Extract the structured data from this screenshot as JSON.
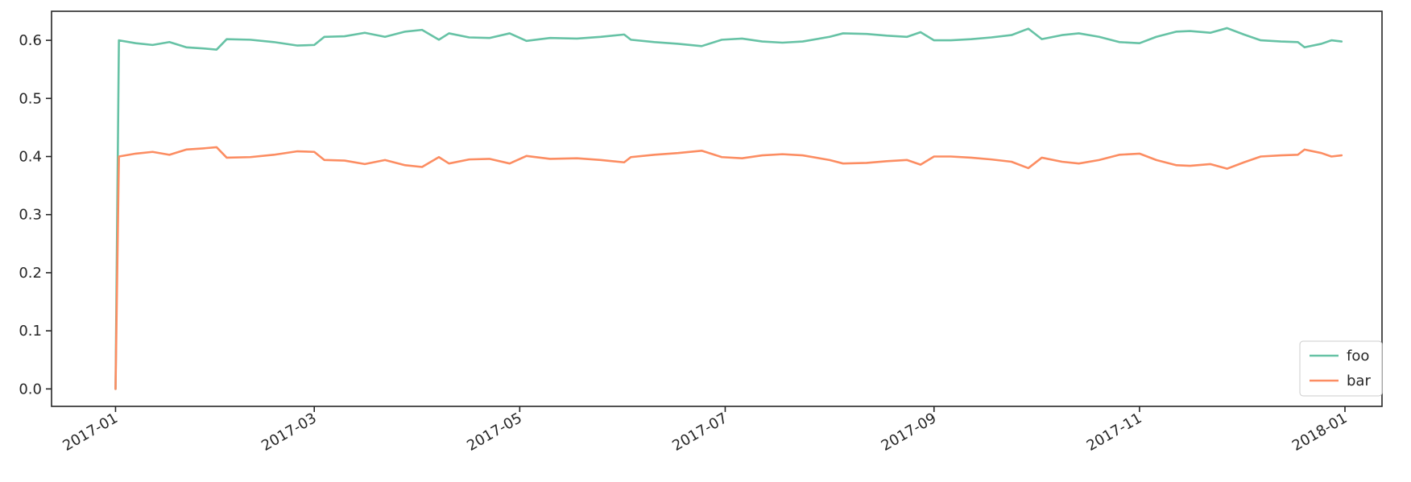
{
  "chart_data": {
    "type": "line",
    "title": "",
    "xlabel": "",
    "ylabel": "",
    "x_start": "2017-01-01",
    "x_end": "2017-12-31",
    "xlim": [
      "2016-12-13",
      "2018-01-12"
    ],
    "ylim": [
      -0.03,
      0.65
    ],
    "grid": false,
    "legend_position": "lower-right",
    "x_ticks": [
      {
        "label": "2017-01",
        "date": "2017-01-01"
      },
      {
        "label": "2017-03",
        "date": "2017-03-01"
      },
      {
        "label": "2017-05",
        "date": "2017-05-01"
      },
      {
        "label": "2017-07",
        "date": "2017-07-01"
      },
      {
        "label": "2017-09",
        "date": "2017-09-01"
      },
      {
        "label": "2017-11",
        "date": "2017-11-01"
      },
      {
        "label": "2018-01",
        "date": "2018-01-01"
      }
    ],
    "y_ticks": [
      {
        "label": "0.0",
        "value": 0.0
      },
      {
        "label": "0.1",
        "value": 0.1
      },
      {
        "label": "0.2",
        "value": 0.2
      },
      {
        "label": "0.3",
        "value": 0.3
      },
      {
        "label": "0.4",
        "value": 0.4
      },
      {
        "label": "0.5",
        "value": 0.5
      },
      {
        "label": "0.6",
        "value": 0.6
      }
    ],
    "series": [
      {
        "name": "foo",
        "color": "#66c2a5",
        "points": [
          [
            "2017-01-01",
            0.0
          ],
          [
            "2017-01-02",
            0.6
          ],
          [
            "2017-01-07",
            0.595
          ],
          [
            "2017-01-12",
            0.592
          ],
          [
            "2017-01-17",
            0.597
          ],
          [
            "2017-01-22",
            0.588
          ],
          [
            "2017-01-27",
            0.586
          ],
          [
            "2017-01-31",
            0.584
          ],
          [
            "2017-02-03",
            0.602
          ],
          [
            "2017-02-10",
            0.601
          ],
          [
            "2017-02-17",
            0.597
          ],
          [
            "2017-02-24",
            0.591
          ],
          [
            "2017-03-01",
            0.592
          ],
          [
            "2017-03-04",
            0.606
          ],
          [
            "2017-03-10",
            0.607
          ],
          [
            "2017-03-16",
            0.613
          ],
          [
            "2017-03-22",
            0.606
          ],
          [
            "2017-03-28",
            0.615
          ],
          [
            "2017-04-02",
            0.618
          ],
          [
            "2017-04-07",
            0.601
          ],
          [
            "2017-04-10",
            0.612
          ],
          [
            "2017-04-16",
            0.605
          ],
          [
            "2017-04-22",
            0.604
          ],
          [
            "2017-04-28",
            0.612
          ],
          [
            "2017-05-03",
            0.599
          ],
          [
            "2017-05-10",
            0.604
          ],
          [
            "2017-05-18",
            0.603
          ],
          [
            "2017-05-25",
            0.606
          ],
          [
            "2017-06-01",
            0.61
          ],
          [
            "2017-06-03",
            0.601
          ],
          [
            "2017-06-10",
            0.597
          ],
          [
            "2017-06-17",
            0.594
          ],
          [
            "2017-06-24",
            0.59
          ],
          [
            "2017-06-30",
            0.601
          ],
          [
            "2017-07-06",
            0.603
          ],
          [
            "2017-07-12",
            0.598
          ],
          [
            "2017-07-18",
            0.596
          ],
          [
            "2017-07-24",
            0.598
          ],
          [
            "2017-08-01",
            0.606
          ],
          [
            "2017-08-05",
            0.612
          ],
          [
            "2017-08-12",
            0.611
          ],
          [
            "2017-08-18",
            0.608
          ],
          [
            "2017-08-24",
            0.606
          ],
          [
            "2017-08-28",
            0.614
          ],
          [
            "2017-09-01",
            0.6
          ],
          [
            "2017-09-06",
            0.6
          ],
          [
            "2017-09-12",
            0.602
          ],
          [
            "2017-09-18",
            0.605
          ],
          [
            "2017-09-24",
            0.609
          ],
          [
            "2017-09-29",
            0.62
          ],
          [
            "2017-10-03",
            0.602
          ],
          [
            "2017-10-09",
            0.609
          ],
          [
            "2017-10-14",
            0.612
          ],
          [
            "2017-10-20",
            0.606
          ],
          [
            "2017-10-26",
            0.597
          ],
          [
            "2017-11-01",
            0.595
          ],
          [
            "2017-11-06",
            0.606
          ],
          [
            "2017-11-12",
            0.615
          ],
          [
            "2017-11-16",
            0.616
          ],
          [
            "2017-11-22",
            0.613
          ],
          [
            "2017-11-27",
            0.621
          ],
          [
            "2017-12-02",
            0.61
          ],
          [
            "2017-12-07",
            0.6
          ],
          [
            "2017-12-13",
            0.598
          ],
          [
            "2017-12-18",
            0.597
          ],
          [
            "2017-12-20",
            0.588
          ],
          [
            "2017-12-25",
            0.594
          ],
          [
            "2017-12-28",
            0.6
          ],
          [
            "2017-12-31",
            0.598
          ]
        ]
      },
      {
        "name": "bar",
        "color": "#fc8d62",
        "points": [
          [
            "2017-01-01",
            0.0
          ],
          [
            "2017-01-02",
            0.4
          ],
          [
            "2017-01-07",
            0.405
          ],
          [
            "2017-01-12",
            0.408
          ],
          [
            "2017-01-17",
            0.403
          ],
          [
            "2017-01-22",
            0.412
          ],
          [
            "2017-01-27",
            0.414
          ],
          [
            "2017-01-31",
            0.416
          ],
          [
            "2017-02-03",
            0.398
          ],
          [
            "2017-02-10",
            0.399
          ],
          [
            "2017-02-17",
            0.403
          ],
          [
            "2017-02-24",
            0.409
          ],
          [
            "2017-03-01",
            0.408
          ],
          [
            "2017-03-04",
            0.394
          ],
          [
            "2017-03-10",
            0.393
          ],
          [
            "2017-03-16",
            0.387
          ],
          [
            "2017-03-22",
            0.394
          ],
          [
            "2017-03-28",
            0.385
          ],
          [
            "2017-04-02",
            0.382
          ],
          [
            "2017-04-07",
            0.399
          ],
          [
            "2017-04-10",
            0.388
          ],
          [
            "2017-04-16",
            0.395
          ],
          [
            "2017-04-22",
            0.396
          ],
          [
            "2017-04-28",
            0.388
          ],
          [
            "2017-05-03",
            0.401
          ],
          [
            "2017-05-10",
            0.396
          ],
          [
            "2017-05-18",
            0.397
          ],
          [
            "2017-05-25",
            0.394
          ],
          [
            "2017-06-01",
            0.39
          ],
          [
            "2017-06-03",
            0.399
          ],
          [
            "2017-06-10",
            0.403
          ],
          [
            "2017-06-17",
            0.406
          ],
          [
            "2017-06-24",
            0.41
          ],
          [
            "2017-06-30",
            0.399
          ],
          [
            "2017-07-06",
            0.397
          ],
          [
            "2017-07-12",
            0.402
          ],
          [
            "2017-07-18",
            0.404
          ],
          [
            "2017-07-24",
            0.402
          ],
          [
            "2017-08-01",
            0.394
          ],
          [
            "2017-08-05",
            0.388
          ],
          [
            "2017-08-12",
            0.389
          ],
          [
            "2017-08-18",
            0.392
          ],
          [
            "2017-08-24",
            0.394
          ],
          [
            "2017-08-28",
            0.386
          ],
          [
            "2017-09-01",
            0.4
          ],
          [
            "2017-09-06",
            0.4
          ],
          [
            "2017-09-12",
            0.398
          ],
          [
            "2017-09-18",
            0.395
          ],
          [
            "2017-09-24",
            0.391
          ],
          [
            "2017-09-29",
            0.38
          ],
          [
            "2017-10-03",
            0.398
          ],
          [
            "2017-10-09",
            0.391
          ],
          [
            "2017-10-14",
            0.388
          ],
          [
            "2017-10-20",
            0.394
          ],
          [
            "2017-10-26",
            0.403
          ],
          [
            "2017-11-01",
            0.405
          ],
          [
            "2017-11-06",
            0.394
          ],
          [
            "2017-11-12",
            0.385
          ],
          [
            "2017-11-16",
            0.384
          ],
          [
            "2017-11-22",
            0.387
          ],
          [
            "2017-11-27",
            0.379
          ],
          [
            "2017-12-02",
            0.39
          ],
          [
            "2017-12-07",
            0.4
          ],
          [
            "2017-12-13",
            0.402
          ],
          [
            "2017-12-18",
            0.403
          ],
          [
            "2017-12-20",
            0.412
          ],
          [
            "2017-12-25",
            0.406
          ],
          [
            "2017-12-28",
            0.4
          ],
          [
            "2017-12-31",
            0.402
          ]
        ]
      }
    ]
  }
}
